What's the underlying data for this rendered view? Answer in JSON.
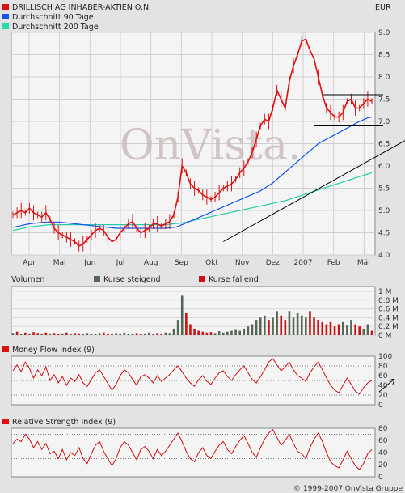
{
  "chart_data": [
    {
      "type": "line",
      "currency": "EUR",
      "watermark": "OnVista.",
      "legend": [
        {
          "name": "DRILLISCH AG INHABER-AKTIEN O.N.",
          "color": "#dd1111"
        },
        {
          "name": "Durchschnitt 90 Tage",
          "color": "#1155ee"
        },
        {
          "name": "Durchschnitt 200 Tage",
          "color": "#22ddaa"
        }
      ],
      "legend_placement": "top-left",
      "grid": true,
      "ylim": [
        4.0,
        9.0
      ],
      "yticks": [
        "4.0",
        "4.5",
        "5.0",
        "5.5",
        "6.0",
        "6.5",
        "7.0",
        "7.5",
        "8.0",
        "8.5",
        "9.0"
      ],
      "xticks": [
        "Apr",
        "Mai",
        "Jun",
        "Jul",
        "Aug",
        "Sep",
        "Okt",
        "Nov",
        "Dez",
        "2007",
        "Feb",
        "Mär"
      ],
      "x": [
        0,
        4,
        8,
        12,
        16,
        20,
        24,
        28,
        32,
        36,
        40,
        44,
        48,
        52,
        56,
        60,
        64,
        68,
        72,
        76,
        80,
        84,
        88,
        92,
        96,
        100,
        104,
        108,
        112,
        116,
        120,
        124,
        128,
        132,
        136,
        140,
        144,
        148,
        152,
        156,
        160,
        164,
        168,
        172,
        176,
        180,
        184,
        188,
        192,
        196,
        200,
        204,
        208,
        212,
        216,
        220,
        224,
        228,
        232,
        236,
        240,
        244,
        248,
        252,
        256,
        260,
        264,
        268,
        272,
        276,
        280,
        284,
        288,
        292,
        296,
        300,
        304,
        308,
        312,
        316,
        320,
        324,
        328,
        332,
        336,
        340,
        344,
        348
      ],
      "series": [
        {
          "name": "DRILLISCH AG INHABER-AKTIEN O.N.",
          "values": [
            4.9,
            4.95,
            5.0,
            4.95,
            5.05,
            4.95,
            4.9,
            4.85,
            4.95,
            4.8,
            4.6,
            4.5,
            4.45,
            4.4,
            4.35,
            4.3,
            4.2,
            4.25,
            4.35,
            4.45,
            4.55,
            4.6,
            4.55,
            4.4,
            4.3,
            4.35,
            4.5,
            4.6,
            4.7,
            4.75,
            4.6,
            4.5,
            4.55,
            4.6,
            4.7,
            4.7,
            4.65,
            4.7,
            4.75,
            4.9,
            5.3,
            6.0,
            5.85,
            5.6,
            5.5,
            5.45,
            5.35,
            5.3,
            5.25,
            5.3,
            5.4,
            5.5,
            5.55,
            5.6,
            5.7,
            5.85,
            5.95,
            6.1,
            6.3,
            6.6,
            6.9,
            7.05,
            7.0,
            7.3,
            7.7,
            7.5,
            7.3,
            7.9,
            8.25,
            8.5,
            8.8,
            8.85,
            8.6,
            8.4,
            8.0,
            7.6,
            7.3,
            7.2,
            7.1,
            7.1,
            7.2,
            7.45,
            7.5,
            7.3,
            7.3,
            7.4,
            7.5,
            7.45
          ]
        },
        {
          "name": "Durchschnitt 90 Tage",
          "values": [
            4.62,
            4.64,
            4.66,
            4.68,
            4.7,
            4.71,
            4.72,
            4.73,
            4.74,
            4.74,
            4.74,
            4.74,
            4.73,
            4.72,
            4.71,
            4.7,
            4.69,
            4.68,
            4.67,
            4.66,
            4.65,
            4.64,
            4.63,
            4.62,
            4.61,
            4.6,
            4.6,
            4.6,
            4.6,
            4.6,
            4.6,
            4.6,
            4.6,
            4.6,
            4.6,
            4.6,
            4.6,
            4.6,
            4.61,
            4.62,
            4.64,
            4.68,
            4.72,
            4.76,
            4.8,
            4.84,
            4.88,
            4.92,
            4.96,
            5.0,
            5.04,
            5.08,
            5.12,
            5.16,
            5.2,
            5.24,
            5.28,
            5.32,
            5.36,
            5.4,
            5.44,
            5.5,
            5.56,
            5.62,
            5.7,
            5.78,
            5.86,
            5.94,
            6.02,
            6.1,
            6.18,
            6.26,
            6.34,
            6.42,
            6.5,
            6.55,
            6.6,
            6.65,
            6.7,
            6.75,
            6.8,
            6.85,
            6.9,
            6.95,
            7.0,
            7.04,
            7.08,
            7.1
          ]
        },
        {
          "name": "Durchschnitt 200 Tage",
          "values": [
            4.55,
            4.57,
            4.59,
            4.61,
            4.63,
            4.64,
            4.65,
            4.66,
            4.67,
            4.68,
            4.68,
            4.68,
            4.68,
            4.68,
            4.68,
            4.68,
            4.68,
            4.68,
            4.68,
            4.68,
            4.68,
            4.68,
            4.68,
            4.68,
            4.68,
            4.68,
            4.68,
            4.68,
            4.68,
            4.68,
            4.68,
            4.68,
            4.68,
            4.68,
            4.68,
            4.68,
            4.68,
            4.68,
            4.69,
            4.7,
            4.71,
            4.72,
            4.74,
            4.76,
            4.78,
            4.8,
            4.82,
            4.84,
            4.86,
            4.88,
            4.9,
            4.92,
            4.94,
            4.96,
            4.98,
            5.0,
            5.02,
            5.04,
            5.06,
            5.08,
            5.1,
            5.12,
            5.14,
            5.16,
            5.18,
            5.2,
            5.22,
            5.25,
            5.28,
            5.31,
            5.34,
            5.37,
            5.4,
            5.43,
            5.46,
            5.49,
            5.52,
            5.55,
            5.58,
            5.61,
            5.64,
            5.67,
            5.7,
            5.73,
            5.76,
            5.79,
            5.82,
            5.85
          ]
        }
      ]
    },
    {
      "type": "bar",
      "title": "Volumen",
      "legend": [
        {
          "name": "Kurse steigend",
          "color": "#556655"
        },
        {
          "name": "Kurse fallend",
          "color": "#cc1111"
        }
      ],
      "yticks": [
        "1 M",
        "0.8 M",
        "0.6 M",
        "0.4 M",
        "0.2 M",
        "0 M"
      ],
      "ylim": [
        0,
        1.0
      ],
      "values": [
        0.05,
        0.08,
        0.03,
        0.06,
        0.04,
        0.07,
        0.05,
        0.03,
        0.06,
        0.04,
        0.05,
        0.03,
        0.04,
        0.06,
        0.03,
        0.05,
        0.04,
        0.03,
        0.05,
        0.04,
        0.03,
        0.05,
        0.06,
        0.04,
        0.03,
        0.05,
        0.04,
        0.06,
        0.03,
        0.04,
        0.05,
        0.03,
        0.04,
        0.06,
        0.03,
        0.05,
        0.04,
        0.06,
        0.05,
        0.15,
        0.35,
        0.9,
        0.5,
        0.25,
        0.15,
        0.1,
        0.08,
        0.06,
        0.07,
        0.05,
        0.09,
        0.06,
        0.08,
        0.1,
        0.12,
        0.1,
        0.15,
        0.2,
        0.25,
        0.35,
        0.4,
        0.45,
        0.35,
        0.4,
        0.55,
        0.45,
        0.35,
        0.55,
        0.4,
        0.5,
        0.45,
        0.4,
        0.55,
        0.4,
        0.35,
        0.3,
        0.25,
        0.3,
        0.2,
        0.25,
        0.3,
        0.22,
        0.35,
        0.25,
        0.2,
        0.15,
        0.25,
        0.1
      ],
      "rising": [
        1,
        0,
        1,
        0,
        1,
        0,
        0,
        1,
        0,
        1,
        0,
        0,
        1,
        0,
        1,
        0,
        0,
        1,
        1,
        1,
        1,
        1,
        0,
        0,
        0,
        1,
        1,
        1,
        1,
        1,
        0,
        0,
        1,
        1,
        1,
        0,
        0,
        1,
        1,
        1,
        1,
        1,
        0,
        0,
        0,
        0,
        0,
        0,
        0,
        1,
        1,
        1,
        1,
        1,
        1,
        1,
        1,
        1,
        1,
        1,
        1,
        1,
        0,
        1,
        1,
        0,
        0,
        1,
        1,
        1,
        1,
        1,
        0,
        0,
        0,
        0,
        0,
        0,
        0,
        0,
        1,
        1,
        1,
        0,
        0,
        1,
        1,
        0
      ]
    },
    {
      "type": "line",
      "title": "Money Flow Index (9)",
      "ylim": [
        0,
        100
      ],
      "yticks": [
        "100",
        "80",
        "60",
        "40",
        "20",
        "0"
      ],
      "values": [
        70,
        82,
        68,
        88,
        75,
        55,
        72,
        60,
        78,
        50,
        62,
        45,
        58,
        40,
        55,
        48,
        62,
        45,
        38,
        52,
        66,
        72,
        58,
        44,
        30,
        42,
        60,
        72,
        66,
        52,
        40,
        58,
        62,
        55,
        45,
        60,
        48,
        55,
        62,
        72,
        80,
        68,
        55,
        45,
        38,
        52,
        60,
        48,
        42,
        55,
        66,
        70,
        58,
        50,
        62,
        72,
        80,
        66,
        52,
        45,
        58,
        72,
        88,
        95,
        82,
        70,
        78,
        88,
        72,
        60,
        55,
        48,
        66,
        78,
        88,
        72,
        55,
        40,
        30,
        25,
        40,
        55,
        42,
        28,
        22,
        35,
        45,
        50
      ]
    },
    {
      "type": "line",
      "title": "Relative Strength Index (9)",
      "ylim": [
        0,
        80
      ],
      "yticks": [
        "80",
        "60",
        "40",
        "20",
        "0"
      ],
      "values": [
        55,
        62,
        58,
        70,
        62,
        48,
        58,
        45,
        55,
        38,
        42,
        30,
        45,
        28,
        40,
        35,
        48,
        30,
        22,
        38,
        52,
        58,
        42,
        30,
        18,
        30,
        48,
        58,
        52,
        40,
        28,
        45,
        50,
        42,
        30,
        45,
        35,
        42,
        52,
        62,
        72,
        58,
        42,
        30,
        25,
        40,
        48,
        35,
        30,
        42,
        52,
        58,
        45,
        38,
        50,
        60,
        68,
        55,
        40,
        32,
        48,
        62,
        72,
        78,
        65,
        52,
        60,
        70,
        55,
        42,
        38,
        30,
        48,
        62,
        72,
        58,
        40,
        25,
        18,
        15,
        28,
        42,
        30,
        18,
        12,
        22,
        38,
        45
      ]
    }
  ],
  "copyright": "© 1999-2007 OnVista Gruppe"
}
